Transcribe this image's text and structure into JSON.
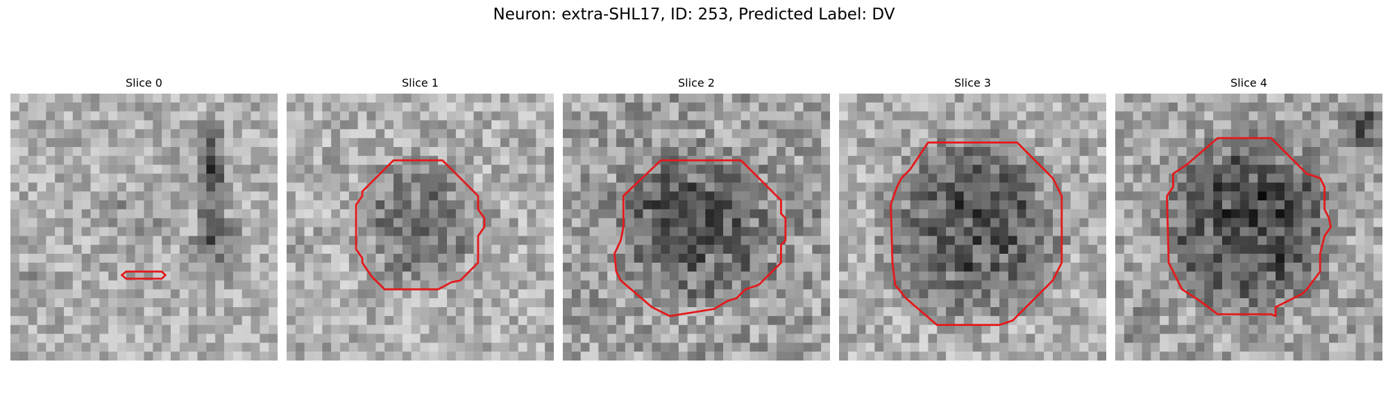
{
  "figure": {
    "title": "Neuron: extra-SHL17, ID: 253, Predicted Label: DV"
  },
  "contour_color": "#e31a1c",
  "panels": [
    {
      "title": "Slice 0"
    },
    {
      "title": "Slice 1"
    },
    {
      "title": "Slice 2"
    },
    {
      "title": "Slice 3"
    },
    {
      "title": "Slice 4"
    }
  ]
}
